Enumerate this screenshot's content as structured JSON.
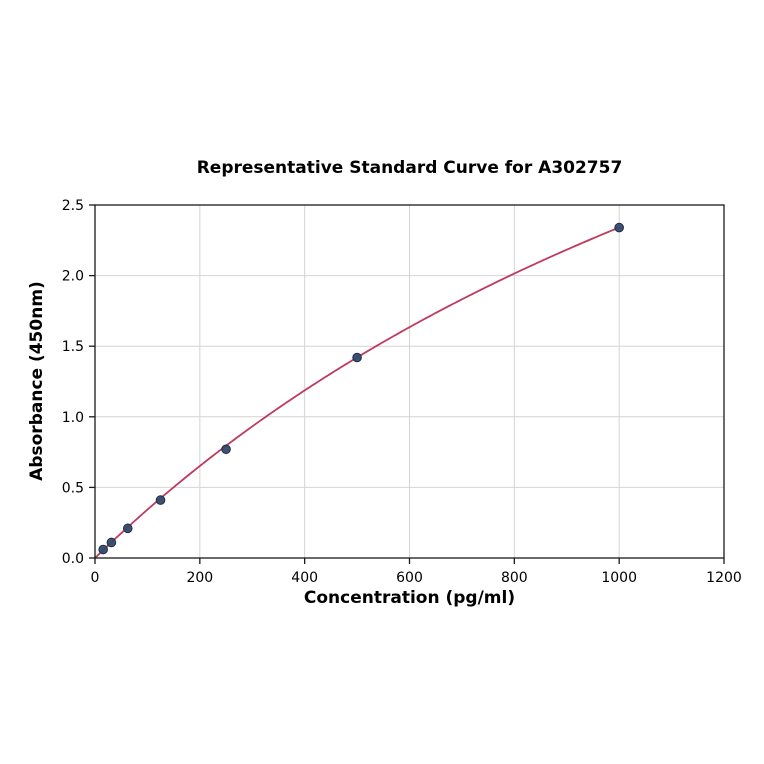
{
  "chart_data": {
    "type": "line",
    "title": "Representative Standard Curve for A302757",
    "xlabel": "Concentration (pg/ml)",
    "ylabel": "Absorbance (450nm)",
    "xlim": [
      0,
      1200
    ],
    "ylim": [
      0.0,
      2.5
    ],
    "xticks": [
      0,
      200,
      400,
      600,
      800,
      1000,
      1200
    ],
    "yticks": [
      0.0,
      0.5,
      1.0,
      1.5,
      2.0,
      2.5
    ],
    "grid": true,
    "legend": "none",
    "points": [
      {
        "x": 15.6,
        "y": 0.06
      },
      {
        "x": 31.25,
        "y": 0.11
      },
      {
        "x": 62.5,
        "y": 0.21
      },
      {
        "x": 125,
        "y": 0.41
      },
      {
        "x": 250,
        "y": 0.77
      },
      {
        "x": 500,
        "y": 1.42
      },
      {
        "x": 1000,
        "y": 2.34
      }
    ],
    "fit_curve": {
      "model": "y = a*x/(b+x)",
      "a": 6.65,
      "b": 1841,
      "x_start": 0,
      "x_end": 1000
    },
    "colors": {
      "curve_line": "#bf3a5f",
      "marker_fill": "#33496b",
      "marker_edge": "#1f2d44",
      "grid_line": "#d4d4d4",
      "frame": "#1a1a1a",
      "background": "#ffffff"
    }
  }
}
